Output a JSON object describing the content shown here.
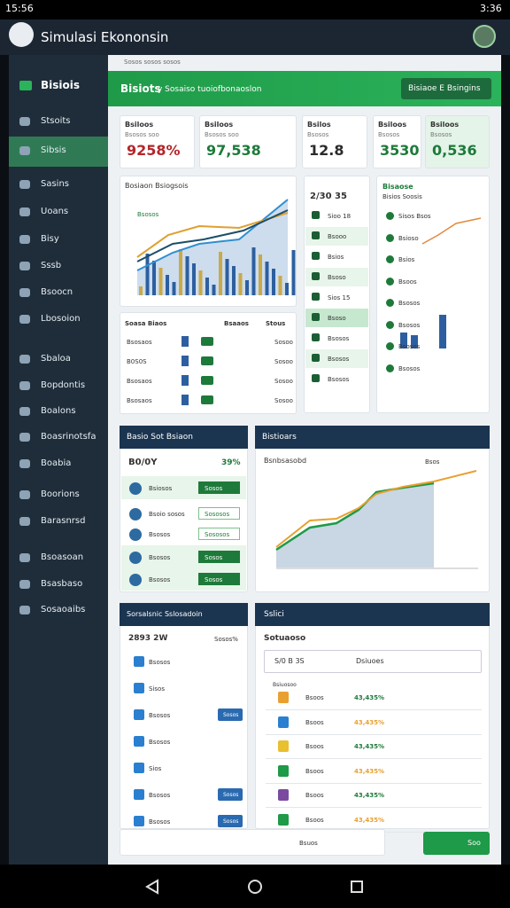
{
  "status_bar": {
    "time": "15:56",
    "battery": "3:36"
  },
  "app_bar": {
    "title": "Simulasi Ekononsin"
  },
  "sidebar": {
    "header": "Bisiois",
    "items": [
      "Stsoits",
      "Sibsis",
      "Sasins",
      "Uoans",
      "Bisy",
      "Sssb",
      "Bsoocn",
      "Lbosoion",
      "Sbaloa",
      "Bopdontis",
      "Boalons",
      "Boasrinotsfa",
      "Boabia",
      "Boorions",
      "Barasnrsd",
      "Bsoasoan",
      "Bsasbaso",
      "Sosaoaibs"
    ]
  },
  "breadcrumb": "Sosos sosos sosos",
  "banner": {
    "title": "Bisiots",
    "subtitle": "y Sosaiso tuoiofbonaoslon",
    "button": "Bisiaoe E Bsingins"
  },
  "kpis": [
    {
      "label": "Bsiloos",
      "sub": "Bsosos soo",
      "value": "9258%",
      "color": "#b3262b"
    },
    {
      "label": "Bsiloos",
      "sub": "Bsosos soo",
      "value": "97,538",
      "color": "#1e7a3a"
    },
    {
      "label": "Bsilos",
      "sub": "Bsosos",
      "value": "12.8",
      "color": "#2b2b2b"
    },
    {
      "label": "Bsiloos",
      "sub": "Bsosos",
      "value": "3530",
      "color": "#1e7a3a"
    },
    {
      "label": "Bsiloos",
      "sub": "Bsosos",
      "value": "0,536",
      "color": "#1e7a3a"
    }
  ],
  "chart_card": {
    "title": "Bosiaon Bsiogsois",
    "legend": "Bsosos"
  },
  "table_card": {
    "headers": [
      "Soasa Biaos",
      "Bsaaos",
      "Stous"
    ],
    "rows": [
      [
        "Bsosaos",
        "Sosoo"
      ],
      [
        "B0S0S",
        "Sosoo"
      ],
      [
        "Bsosaos",
        "Sosoo"
      ],
      [
        "Bsosaos",
        "Sosoo"
      ]
    ]
  },
  "list_card": {
    "title": "2/30 35",
    "items": [
      "Sioo 18",
      "Bsooo",
      "Bsios",
      "Bsoso",
      "Sios 15",
      "Bsoso",
      "Bsosos",
      "Bsosos",
      "Bsosos"
    ]
  },
  "trend_card": {
    "title": "Bisaose",
    "sub": "Bisios Soosis",
    "rows": [
      "Sisos Bsos",
      "Bsioso",
      "Bsios",
      "Bsoos",
      "Bsosos",
      "Bsosos",
      "Bsosos",
      "Bsosos"
    ]
  },
  "goals_card": {
    "title": "Basio Sot Bsiaon",
    "summary": [
      "B0/0Y",
      "39%"
    ],
    "items": [
      {
        "label": "Bsiosos",
        "badge": "Sosos"
      },
      {
        "label": "Bsoio sosos",
        "badge": "Sososos"
      },
      {
        "label": "Bsosos",
        "badge": "Sososos"
      },
      {
        "label": "Bsosos",
        "badge": "Sosos"
      },
      {
        "label": "Bsosos",
        "badge": "Sosos"
      }
    ]
  },
  "stats_card": {
    "title": "Bistioars",
    "subtitle": "Bsnbsasobd",
    "legend": "Bsos"
  },
  "schedule_card": {
    "title": "Sorsalsnic Sslosadoin",
    "summary": [
      "2893 2W",
      "Sosos%"
    ],
    "items": [
      {
        "label": "Bsosos",
        "badge": null
      },
      {
        "label": "Sisos",
        "badge": null
      },
      {
        "label": "Bsosos",
        "badge": "Sosos"
      },
      {
        "label": "Bsosos",
        "badge": null
      },
      {
        "label": "Sios",
        "badge": null
      },
      {
        "label": "Bsosos",
        "badge": "Sosos"
      },
      {
        "label": "Bsosos",
        "badge": "Sosos"
      }
    ]
  },
  "select_card": {
    "title": "Sslici",
    "heading": "Sotuaoso",
    "dropdown": [
      "S/0 B 3S",
      "Dsiuoes"
    ],
    "caption": "Bsiuosoo",
    "rows": [
      {
        "name": "Bsoos",
        "value": "43,435%"
      },
      {
        "name": "Bsoos",
        "value": "43,435%"
      },
      {
        "name": "Bsoos",
        "value": "43,435%"
      },
      {
        "name": "Bsoos",
        "value": "43,435%"
      },
      {
        "name": "Bsoos",
        "value": "43,435%"
      },
      {
        "name": "Bsoos",
        "value": "43,435%"
      }
    ]
  },
  "toolbar": {
    "label": "Bsuos",
    "button": "Soo"
  }
}
